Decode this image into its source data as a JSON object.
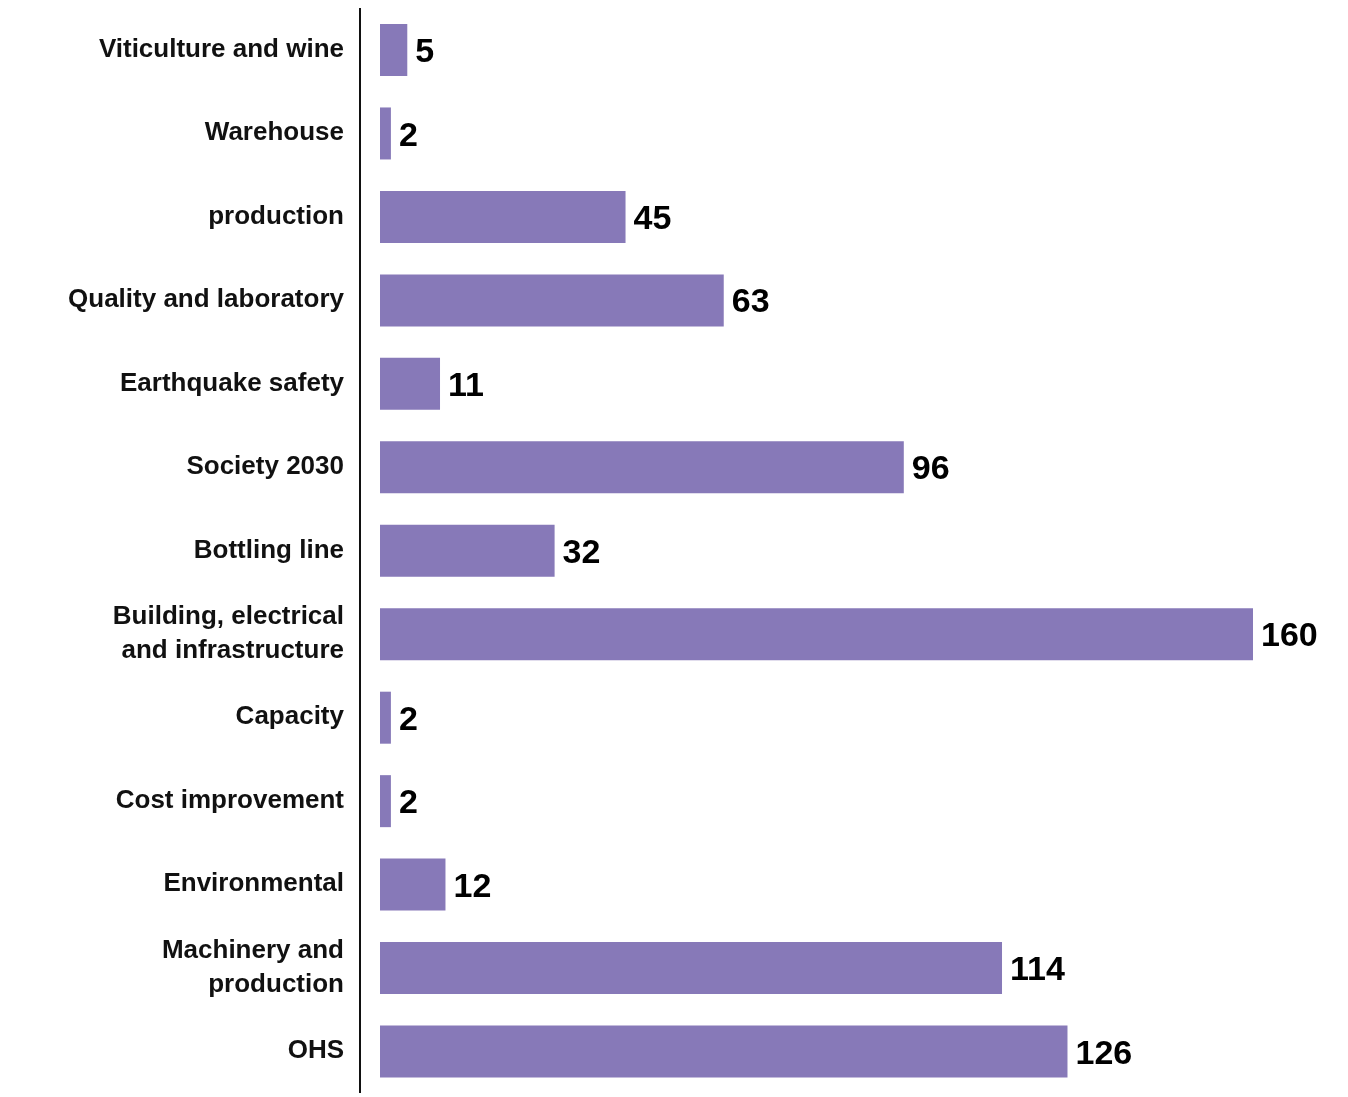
{
  "chart_data": {
    "type": "bar",
    "orientation": "horizontal",
    "categories": [
      "Viticulture and wine",
      "Warehouse",
      "production",
      "Quality and laboratory",
      "Earthquake safety",
      "Society 2030",
      "Bottling line",
      "Building, electrical and infrastructure",
      "Capacity",
      "Cost improvement",
      "Environmental",
      "Machinery and production",
      "OHS"
    ],
    "values": [
      5,
      2,
      45,
      63,
      11,
      96,
      32,
      160,
      2,
      2,
      12,
      114,
      126
    ],
    "color": "#8779b8",
    "data_labels": true,
    "grid": false,
    "legend": false
  }
}
